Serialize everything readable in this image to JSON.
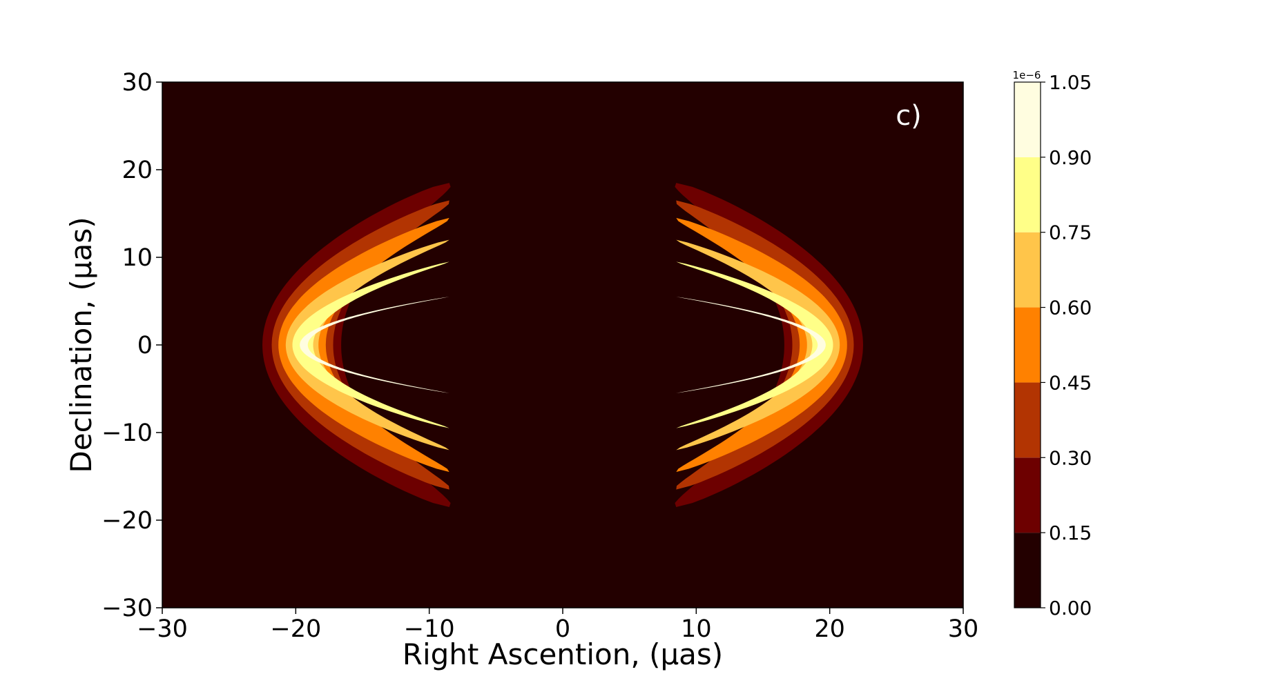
{
  "chart_data": {
    "type": "contour",
    "panel_label": "c)",
    "xlabel": "Right Ascention, (μas)",
    "ylabel": "Declination, (μas)",
    "xlim": [
      -30,
      30
    ],
    "ylim": [
      -30,
      30
    ],
    "x_ticks": [
      -30,
      -20,
      -10,
      0,
      10,
      20,
      30
    ],
    "y_ticks": [
      -30,
      -20,
      -10,
      0,
      10,
      20,
      30
    ],
    "x_tick_labels": [
      "−30",
      "−20",
      "−10",
      "0",
      "10",
      "20",
      "30"
    ],
    "y_tick_labels": [
      "−30",
      "−20",
      "−10",
      "0",
      "10",
      "20",
      "30"
    ],
    "colorbar": {
      "offset_label": "1e−6",
      "levels": [
        0.0,
        0.15,
        0.3,
        0.45,
        0.6,
        0.75,
        0.9,
        1.05
      ],
      "tick_labels": [
        "0.00",
        "0.15",
        "0.30",
        "0.45",
        "0.60",
        "0.75",
        "0.90",
        "1.05"
      ],
      "colors": [
        "#230000",
        "#6d0000",
        "#b23402",
        "#ff8100",
        "#ffc54a",
        "#ffff88",
        "#fffde0"
      ]
    },
    "crescents": [
      {
        "side": "left",
        "x_center": -19.5,
        "x_outer_extent": -22.5,
        "x_tip": -8,
        "y_tip": 18.5,
        "peak": 1.0
      },
      {
        "side": "right",
        "x_center": 19.5,
        "x_outer_extent": 22.5,
        "x_tip": 8,
        "y_tip": 18.5,
        "peak": 1.0
      }
    ]
  }
}
